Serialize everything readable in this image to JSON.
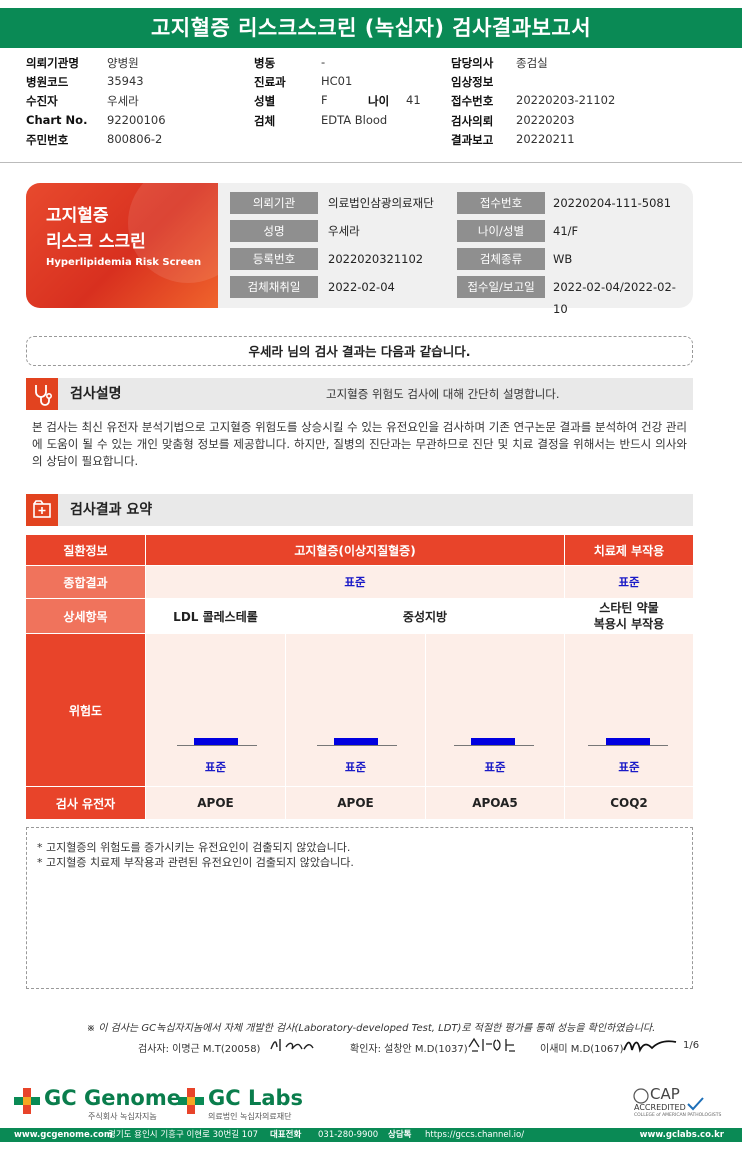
{
  "title": "고지혈증 리스크스크린 (녹십자) 검사결과보고서",
  "info": {
    "col1": [
      {
        "k": "의뢰기관명",
        "v": "양병원"
      },
      {
        "k": "병원코드",
        "v": "35943"
      },
      {
        "k": "수진자",
        "v": "우세라"
      },
      {
        "k": "Chart No.",
        "v": "92200106"
      },
      {
        "k": "주민번호",
        "v": "800806-2"
      }
    ],
    "col2": [
      {
        "k": "병동",
        "v": "-"
      },
      {
        "k": "진료과",
        "v": "HC01"
      },
      {
        "k": "성별",
        "v": "F"
      },
      {
        "k": "검체",
        "v": "EDTA Blood"
      }
    ],
    "age_k": "나이",
    "age_v": "41",
    "col3": [
      {
        "k": "담당의사",
        "v": "종검실"
      },
      {
        "k": "임상정보",
        "v": ""
      },
      {
        "k": "접수번호",
        "v": "20220203-21102"
      },
      {
        "k": "검사의뢰",
        "v": "20220203"
      },
      {
        "k": "결과보고",
        "v": "20220211"
      }
    ]
  },
  "banner": {
    "title_line1": "고지혈증",
    "title_line2": "리스크 스크린",
    "subtitle": "Hyperlipidemia Risk Screen",
    "rows": [
      {
        "k1": "의뢰기관",
        "v1": "의료법인삼광의료재단",
        "k2": "접수번호",
        "v2": "20220204-111-5081"
      },
      {
        "k1": "성명",
        "v1": "우세라",
        "k2": "나이/성별",
        "v2": "41/F"
      },
      {
        "k1": "등록번호",
        "v1": "2022020321102",
        "k2": "검체종류",
        "v2": "WB"
      },
      {
        "k1": "검체채취일",
        "v1": "2022-02-04",
        "k2": "접수일/보고일",
        "v2": "2022-02-04/2022-02-10"
      }
    ]
  },
  "notice": "우세라 님의 검사 결과는 다음과 같습니다.",
  "section1": {
    "label": "검사설명",
    "sub": "고지혈증 위험도 검사에 대해 간단히 설명합니다.",
    "text": "본 검사는 최신 유전자 분석기법으로 고지혈증 위험도를 상승시킬 수 있는 유전요인을 검사하며 기존 연구논문 결과를 분석하여 건강 관리에 도움이 될 수 있는 개인 맞춤형 정보를 제공합니다. 하지만, 질병의 진단과는 무관하므로 진단 및 치료 결정을 위해서는 반드시 의사와의 상담이 필요합니다."
  },
  "section2": {
    "label": "검사결과 요약"
  },
  "table": {
    "h_disease": "질환정보",
    "h_main": "고지혈증(이상지질혈증)",
    "h_side": "치료제 부작용",
    "r_overall": "종합결과",
    "overall_main": "표준",
    "overall_side": "표준",
    "r_detail": "상세항목",
    "detail_ldl": "LDL 콜레스테롤",
    "detail_tg": "중성지방",
    "detail_statin_1": "스타틴 약물",
    "detail_statin_2": "복용시 부작용",
    "r_risk": "위험도",
    "risk_levels": [
      "표준",
      "표준",
      "표준",
      "표준"
    ],
    "r_gene": "검사 유전자",
    "genes": [
      "APOE",
      "APOE",
      "APOA5",
      "COQ2"
    ]
  },
  "notes": [
    "* 고지혈증의 위험도를 증가시키는 유전요인이 검출되지 않았습니다.",
    "* 고지혈증 치료제 부작용과 관련된 유전요인이 검출되지 않았습니다."
  ],
  "footer_note": "※ 이 검사는 GC녹십자지놈에서 자체 개발한 검사(Laboratory-developed Test, LDT)로 적절한 평가를 통해 성능을 확인하였습니다.",
  "signers": {
    "tester": "검사자: 이명근 M.T(20058)",
    "checker": "확인자: 설창안 M.D(1037)",
    "third": "이새미 M.D(1067)",
    "page": "1/6"
  },
  "logos": {
    "genome_name": "GC Genome",
    "genome_sub": "주식회사 녹십자지놈",
    "labs_name": "GC Labs",
    "labs_sub": "의료법인 녹십자의료재단",
    "cap_1": "CAP",
    "cap_2": "ACCREDITED",
    "cap_3": "COLLEGE of AMERICAN PATHOLOGISTS"
  },
  "bottom": {
    "url_left": "www.gcgenome.com",
    "address": "경기도 용인시 기흥구 이현로 30번길 107",
    "phone_k": "대표전화",
    "phone": "031-280-9900",
    "consult_k": "상담톡",
    "consult": "https://gccs.channel.io/",
    "url_right": "www.gclabs.co.kr"
  },
  "colors": {
    "green": "#0a8a55",
    "red": "#e8442a",
    "blue": "#1a1ac7"
  }
}
